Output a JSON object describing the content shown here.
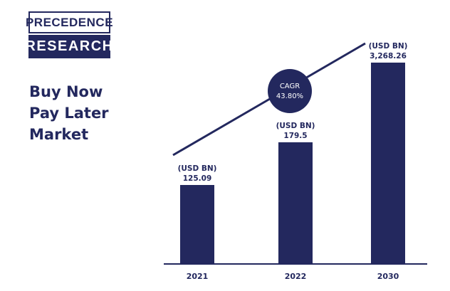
{
  "logo": {
    "line1": "PRECEDENCE",
    "line2": "RESEARCH"
  },
  "title_lines": [
    "Buy Now",
    "Pay Later",
    "Market"
  ],
  "colors": {
    "primary": "#23285e",
    "background": "#ffffff"
  },
  "chart_data": {
    "type": "bar",
    "title": "Buy Now Pay Later Market",
    "categories": [
      "2021",
      "2022",
      "2030"
    ],
    "values": [
      125.09,
      179.5,
      3268.26
    ],
    "unit_label": "(USD BN)",
    "value_labels": [
      "125.09",
      "179.5",
      "3,268.26"
    ],
    "xlabel": "",
    "ylabel": "",
    "annotation": {
      "label": "CAGR",
      "value": "43.80%"
    },
    "grid": false
  }
}
